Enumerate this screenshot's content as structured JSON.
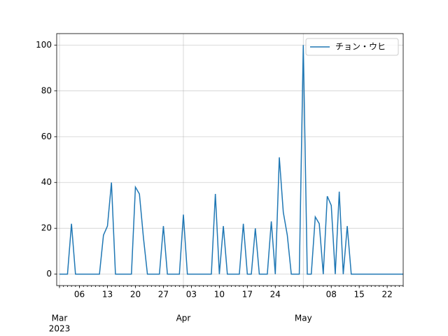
{
  "chart_data": {
    "type": "line",
    "x": [
      "2023-03-01",
      "2023-03-02",
      "2023-03-03",
      "2023-03-04",
      "2023-03-05",
      "2023-03-06",
      "2023-03-07",
      "2023-03-08",
      "2023-03-09",
      "2023-03-10",
      "2023-03-11",
      "2023-03-12",
      "2023-03-13",
      "2023-03-14",
      "2023-03-15",
      "2023-03-16",
      "2023-03-17",
      "2023-03-18",
      "2023-03-19",
      "2023-03-20",
      "2023-03-21",
      "2023-03-22",
      "2023-03-23",
      "2023-03-24",
      "2023-03-25",
      "2023-03-26",
      "2023-03-27",
      "2023-03-28",
      "2023-03-29",
      "2023-03-30",
      "2023-03-31",
      "2023-04-01",
      "2023-04-02",
      "2023-04-03",
      "2023-04-04",
      "2023-04-05",
      "2023-04-06",
      "2023-04-07",
      "2023-04-08",
      "2023-04-09",
      "2023-04-10",
      "2023-04-11",
      "2023-04-12",
      "2023-04-13",
      "2023-04-14",
      "2023-04-15",
      "2023-04-16",
      "2023-04-17",
      "2023-04-18",
      "2023-04-19",
      "2023-04-20",
      "2023-04-21",
      "2023-04-22",
      "2023-04-23",
      "2023-04-24",
      "2023-04-25",
      "2023-04-26",
      "2023-04-27",
      "2023-04-28",
      "2023-04-29",
      "2023-04-30",
      "2023-05-01",
      "2023-05-02",
      "2023-05-03",
      "2023-05-04",
      "2023-05-05",
      "2023-05-06",
      "2023-05-07",
      "2023-05-08",
      "2023-05-09",
      "2023-05-10",
      "2023-05-11",
      "2023-05-12",
      "2023-05-13",
      "2023-05-14",
      "2023-05-15",
      "2023-05-16",
      "2023-05-17",
      "2023-05-18",
      "2023-05-19",
      "2023-05-20",
      "2023-05-21",
      "2023-05-22",
      "2023-05-23",
      "2023-05-24",
      "2023-05-25",
      "2023-05-26"
    ],
    "series": [
      {
        "name": "チョン・ウヒ",
        "color": "#1f77b4",
        "values": [
          0,
          0,
          0,
          22,
          0,
          0,
          0,
          0,
          0,
          0,
          0,
          17,
          21,
          40,
          0,
          0,
          0,
          0,
          0,
          38,
          35,
          16,
          0,
          0,
          0,
          0,
          21,
          0,
          0,
          0,
          0,
          26,
          0,
          0,
          0,
          0,
          0,
          0,
          0,
          35,
          0,
          21,
          0,
          0,
          0,
          0,
          22,
          0,
          0,
          20,
          0,
          0,
          0,
          23,
          0,
          51,
          27,
          17,
          0,
          0,
          0,
          100,
          0,
          0,
          25,
          22,
          0,
          34,
          30,
          0,
          36,
          0,
          21,
          0,
          0,
          0,
          0,
          0,
          0,
          0,
          0,
          0,
          0,
          0,
          0,
          0,
          0
        ]
      }
    ],
    "xlim": [
      "2023-03-01",
      "2023-05-26"
    ],
    "ylim": [
      -5,
      105
    ],
    "yticks": [
      0,
      20,
      40,
      60,
      80,
      100
    ],
    "xticks": [
      {
        "value": "2023-03-06",
        "label": "06"
      },
      {
        "value": "2023-03-13",
        "label": "13"
      },
      {
        "value": "2023-03-20",
        "label": "20"
      },
      {
        "value": "2023-03-27",
        "label": "27"
      },
      {
        "value": "2023-04-03",
        "label": "03"
      },
      {
        "value": "2023-04-10",
        "label": "10"
      },
      {
        "value": "2023-04-17",
        "label": "17"
      },
      {
        "value": "2023-04-24",
        "label": "24"
      },
      {
        "value": "2023-05-08",
        "label": "08"
      },
      {
        "value": "2023-05-15",
        "label": "15"
      },
      {
        "value": "2023-05-22",
        "label": "22"
      }
    ],
    "major_xticks": [
      {
        "value": "2023-03-01",
        "label": "Mar"
      },
      {
        "value": "2023-04-01",
        "label": "Apr"
      },
      {
        "value": "2023-05-01",
        "label": "May"
      }
    ],
    "year_label": "2023",
    "grid": true,
    "legend": "upper right"
  }
}
